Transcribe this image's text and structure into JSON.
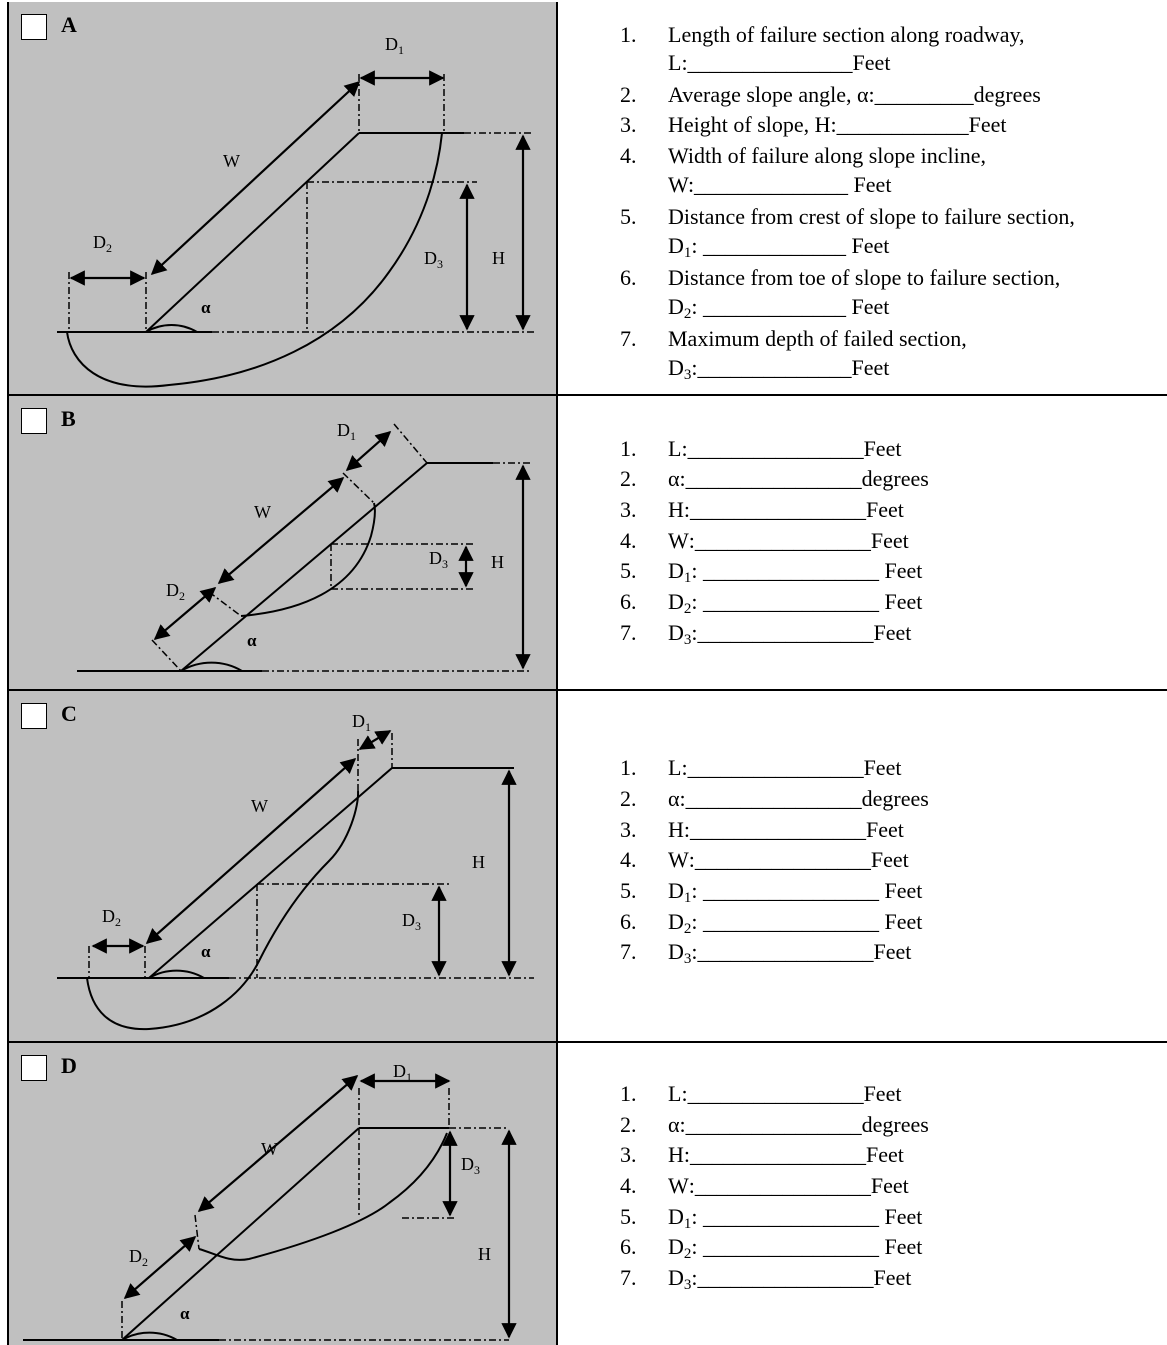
{
  "options": [
    {
      "letter": "A",
      "labels": {
        "D1": "D",
        "D2": "D",
        "D3": "D",
        "W": "W",
        "H": "H",
        "alpha": "α"
      },
      "subs": {
        "D1": "1",
        "D2": "2",
        "D3": "3"
      },
      "items": [
        {
          "num": "1.",
          "line1": "Length of failure section along roadway,",
          "line2": "L:_______________Feet"
        },
        {
          "num": "2.",
          "line1": "Average slope angle,  α:_________degrees"
        },
        {
          "num": "3.",
          "line1": "Height of slope, H:____________Feet"
        },
        {
          "num": "4.",
          "line1": "Width of failure along slope incline,",
          "line2": "W:______________ Feet"
        },
        {
          "num": "5.",
          "line1": "Distance from crest of slope to failure section,",
          "line2pre": "D",
          "line2sub": "1",
          "line2": ": _____________ Feet"
        },
        {
          "num": "6.",
          "line1": "Distance from toe of slope to failure section,",
          "line2pre": "D",
          "line2sub": "2",
          "line2": ": _____________ Feet"
        },
        {
          "num": "7.",
          "line1": "Maximum depth of failed section,",
          "line2pre": "D",
          "line2sub": "3",
          "line2": ":______________Feet"
        }
      ]
    },
    {
      "letter": "B",
      "labels": {
        "D1": "D",
        "D2": "D",
        "D3": "D",
        "W": "W",
        "H": "H",
        "alpha": "α"
      },
      "subs": {
        "D1": "1",
        "D2": "2",
        "D3": "3"
      },
      "items": [
        {
          "num": "1.",
          "pre": "L",
          "sub": "",
          "text": ":________________Feet"
        },
        {
          "num": "2.",
          "pre": "α",
          "sub": "",
          "text": ":________________degrees"
        },
        {
          "num": "3.",
          "pre": "H",
          "sub": "",
          "text": ":________________Feet"
        },
        {
          "num": "4.",
          "pre": "W",
          "sub": "",
          "text": ":________________Feet"
        },
        {
          "num": "5.",
          "pre": "D",
          "sub": "1",
          "text": ": ________________ Feet"
        },
        {
          "num": "6.",
          "pre": "D",
          "sub": "2",
          "text": ": ________________ Feet"
        },
        {
          "num": "7.",
          "pre": "D",
          "sub": "3",
          "text": ":________________Feet"
        }
      ]
    },
    {
      "letter": "C",
      "labels": {
        "D1": "D",
        "D2": "D",
        "D3": "D",
        "W": "W",
        "H": "H",
        "alpha": "α"
      },
      "subs": {
        "D1": "1",
        "D2": "2",
        "D3": "3"
      },
      "items": [
        {
          "num": "1.",
          "pre": "L",
          "sub": "",
          "text": ":________________Feet"
        },
        {
          "num": "2.",
          "pre": "α",
          "sub": "",
          "text": ":________________degrees"
        },
        {
          "num": "3.",
          "pre": "H",
          "sub": "",
          "text": ":________________Feet"
        },
        {
          "num": "4.",
          "pre": "W",
          "sub": "",
          "text": ":________________Feet"
        },
        {
          "num": "5.",
          "pre": "D",
          "sub": "1",
          "text": ": ________________ Feet"
        },
        {
          "num": "6.",
          "pre": "D",
          "sub": "2",
          "text": ": ________________ Feet"
        },
        {
          "num": "7.",
          "pre": "D",
          "sub": "3",
          "text": ":________________Feet"
        }
      ]
    },
    {
      "letter": "D",
      "labels": {
        "D1": "D",
        "D2": "D",
        "D3": "D",
        "W": "W",
        "H": "H",
        "alpha": "α"
      },
      "subs": {
        "D1": "1",
        "D2": "2",
        "D3": "3"
      },
      "items": [
        {
          "num": "1.",
          "pre": "L",
          "sub": "",
          "text": ":________________Feet"
        },
        {
          "num": "2.",
          "pre": "α",
          "sub": "",
          "text": ":________________degrees"
        },
        {
          "num": "3.",
          "pre": "H",
          "sub": "",
          "text": ":________________Feet"
        },
        {
          "num": "4.",
          "pre": "W",
          "sub": "",
          "text": ":________________Feet"
        },
        {
          "num": "5.",
          "pre": "D",
          "sub": "1",
          "text": ": ________________ Feet"
        },
        {
          "num": "6.",
          "pre": "D",
          "sub": "2",
          "text": ": ________________ Feet"
        },
        {
          "num": "7.",
          "pre": "D",
          "sub": "3",
          "text": ":________________Feet"
        }
      ]
    }
  ]
}
